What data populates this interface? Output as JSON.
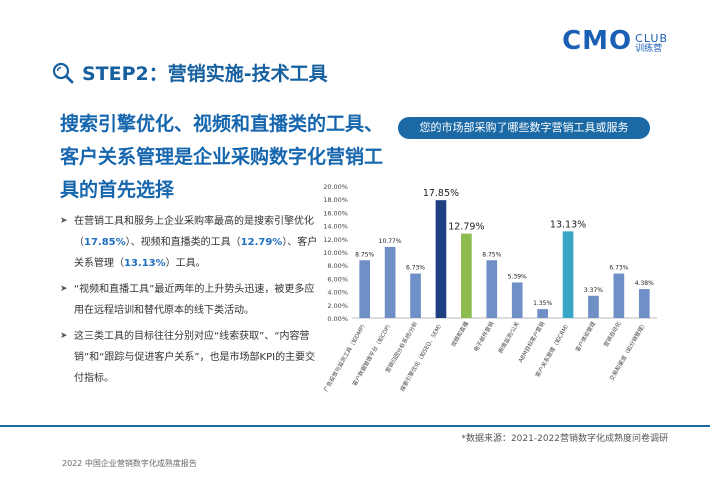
{
  "logo": {
    "main": "CMO",
    "top": "CLUB",
    "bottom": "训练营"
  },
  "step_title": "STEP2：营销实施-技术工具",
  "headline": "搜索引擎优化、视频和直播类的工具、客户关系管理是企业采购数字化营销工具的首先选择",
  "bullets": [
    {
      "parts": [
        {
          "text": "在营销工具和服务上企业采购率最高的是搜索引擎优化（",
          "hl": false
        },
        {
          "text": "17.85%",
          "hl": true
        },
        {
          "text": "）、视频和直播类的工具（",
          "hl": false
        },
        {
          "text": "12.79%",
          "hl": true
        },
        {
          "text": "）、客户关系管理（",
          "hl": false
        },
        {
          "text": "13.13%",
          "hl": true
        },
        {
          "text": "）工具。",
          "hl": false
        }
      ]
    },
    {
      "parts": [
        {
          "text": "“视频和直播工具”最近两年的上升势头迅速，被更多应用在远程培训和替代原本的线下类活动。",
          "hl": false
        }
      ]
    },
    {
      "parts": [
        {
          "text": "这三类工具的目标往往分别对应“线索获取”、“内容营销”和“跟踪与促进客户关系”，也是市场部KPI的主要交付指标。",
          "hl": false
        }
      ]
    }
  ],
  "chart_header": "您的市场部采购了哪些数字营销工具或服务",
  "source": "*数据来源：2021-2022营销数字化成熟度问卷调研",
  "footer": "2022 中国企业营销数字化成熟度报告",
  "colors": {
    "brand": "#1b6aa6",
    "bar": "#6f8fc7",
    "dark": "#1e3f82",
    "green": "#8cbc4f",
    "teal": "#3aa6c6"
  },
  "chart_data": {
    "type": "bar",
    "categories": [
      "广告投放与监测工具（如DMP）",
      "客户数据管理平台（如CDP）",
      "营销归因分析系统/分析",
      "搜索引擎优化（如SEO、SEM）",
      "视频和直播",
      "电子邮件营销",
      "舆情监测/公关",
      "ABM目标客户营销",
      "客户关系管理（如CRM）",
      "客户体验管理",
      "营销自动化",
      "交易和渠道（如分销管理）"
    ],
    "values": [
      8.75,
      10.77,
      6.73,
      17.85,
      12.79,
      8.75,
      5.39,
      1.35,
      13.13,
      3.37,
      6.73,
      4.38
    ],
    "value_labels": [
      "8.75%",
      "10.77%",
      "6.73%",
      "17.85%",
      "12.79%",
      "8.75%",
      "5.39%",
      "1.35%",
      "13.13%",
      "3.37%",
      "6.73%",
      "4.38%"
    ],
    "highlight_colors": {
      "3": "dark",
      "4": "green",
      "8": "teal"
    },
    "ylim": [
      0,
      20
    ],
    "yticks": [
      "0.00%",
      "2.00%",
      "4.00%",
      "6.00%",
      "8.00%",
      "10.00%",
      "12.00%",
      "14.00%",
      "16.00%",
      "18.00%",
      "20.00%"
    ],
    "grid": false
  }
}
